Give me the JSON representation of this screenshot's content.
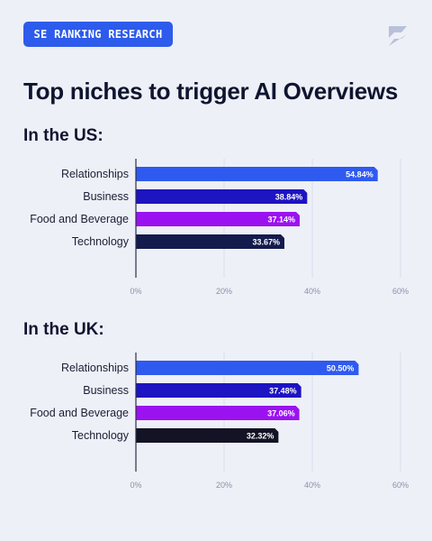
{
  "badge": "SE RANKING RESEARCH",
  "logo_icon": "se-ranking-logo-icon",
  "title": "Top niches to trigger AI Overviews",
  "colors": {
    "background": "#EEF0F7",
    "badge": "#2D5BEB",
    "grid": "#D9DEEE",
    "axis": "#2A2F45"
  },
  "chart_data": [
    {
      "type": "bar",
      "orientation": "horizontal",
      "title": "In the US:",
      "categories": [
        "Relationships",
        "Business",
        "Food and Beverage",
        "Technology"
      ],
      "values": [
        54.84,
        38.84,
        37.14,
        33.67
      ],
      "value_labels": [
        "54.84%",
        "38.84%",
        "37.14%",
        "33.67%"
      ],
      "bar_colors": [
        "#2F5AF0",
        "#1D14C2",
        "#9B12F0",
        "#141B4D"
      ],
      "xlim": [
        0,
        60
      ],
      "ticks": [
        0,
        20,
        40,
        60
      ],
      "tick_labels": [
        "0%",
        "20%",
        "40%",
        "60%"
      ],
      "grid": true
    },
    {
      "type": "bar",
      "orientation": "horizontal",
      "title": "In the UK:",
      "categories": [
        "Relationships",
        "Business",
        "Food and Beverage",
        "Technology"
      ],
      "values": [
        50.5,
        37.48,
        37.06,
        32.32
      ],
      "value_labels": [
        "50.50%",
        "37.48%",
        "37.06%",
        "32.32%"
      ],
      "bar_colors": [
        "#2F5AF0",
        "#1D14C2",
        "#9B12F0",
        "#141325"
      ],
      "xlim": [
        0,
        60
      ],
      "ticks": [
        0,
        20,
        40,
        60
      ],
      "tick_labels": [
        "0%",
        "20%",
        "40%",
        "60%"
      ],
      "grid": true
    }
  ]
}
